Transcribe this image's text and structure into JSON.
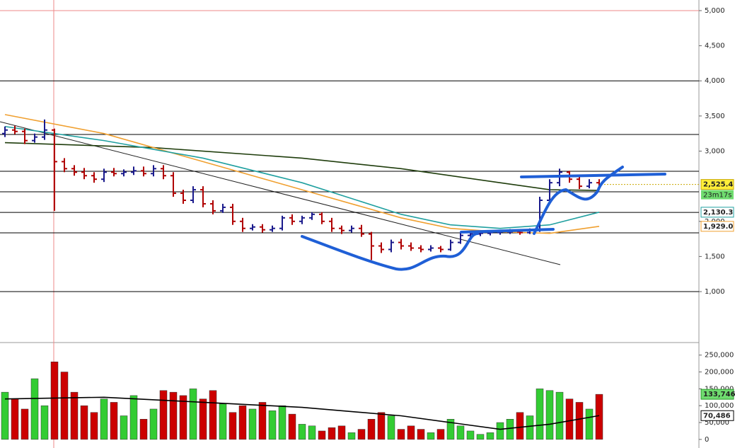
{
  "chart_data": [
    {
      "type": "ohlc",
      "open": [
        3250,
        3300,
        3280,
        3150,
        3200,
        3300,
        2850,
        2750,
        2700,
        2650,
        2600,
        2700,
        2680,
        2700,
        2720,
        2680,
        2750,
        2650,
        2400,
        2300,
        2450,
        2250,
        2150,
        2200,
        2000,
        1900,
        1920,
        1880,
        1900,
        2050,
        2000,
        2050,
        2100,
        2000,
        1900,
        1870,
        1900,
        1820,
        1650,
        1600,
        1700,
        1650,
        1620,
        1600,
        1620,
        1600,
        1700,
        1800,
        1820,
        1830,
        1840,
        1850,
        1850,
        1840,
        1870,
        2300,
        2550,
        2700,
        2600,
        2500,
        2550
      ],
      "high": [
        3350,
        3360,
        3320,
        3250,
        3450,
        3320,
        2900,
        2800,
        2760,
        2700,
        2750,
        2760,
        2740,
        2780,
        2780,
        2800,
        2800,
        2700,
        2450,
        2500,
        2500,
        2300,
        2250,
        2250,
        2050,
        1960,
        1960,
        1940,
        2080,
        2100,
        2080,
        2130,
        2130,
        2050,
        1940,
        1940,
        1950,
        1850,
        1700,
        1740,
        1750,
        1700,
        1660,
        1660,
        1650,
        1740,
        1840,
        1860,
        1860,
        1870,
        1880,
        1890,
        1890,
        1900,
        2350,
        2600,
        2750,
        2720,
        2640,
        2600,
        2600
      ],
      "low": [
        3200,
        3240,
        3100,
        3120,
        3160,
        2150,
        2700,
        2650,
        2600,
        2550,
        2560,
        2640,
        2640,
        2660,
        2640,
        2640,
        2600,
        2350,
        2250,
        2260,
        2200,
        2100,
        2120,
        1950,
        1850,
        1870,
        1840,
        1850,
        1870,
        1950,
        1960,
        2020,
        1960,
        1850,
        1820,
        1840,
        1780,
        1450,
        1550,
        1560,
        1600,
        1580,
        1560,
        1570,
        1560,
        1580,
        1680,
        1780,
        1790,
        1800,
        1810,
        1820,
        1810,
        1820,
        1850,
        2280,
        2500,
        2550,
        2460,
        2470,
        2480
      ],
      "close": [
        3300,
        3280,
        3150,
        3200,
        3300,
        2850,
        2750,
        2700,
        2650,
        2600,
        2700,
        2680,
        2700,
        2720,
        2680,
        2750,
        2650,
        2400,
        2300,
        2450,
        2250,
        2150,
        2200,
        2000,
        1900,
        1920,
        1880,
        1900,
        2050,
        2000,
        2050,
        2100,
        2000,
        1900,
        1870,
        1900,
        1820,
        1650,
        1600,
        1700,
        1650,
        1620,
        1600,
        1620,
        1600,
        1700,
        1800,
        1820,
        1830,
        1840,
        1850,
        1850,
        1840,
        1870,
        2300,
        2550,
        2700,
        2600,
        2500,
        2550,
        2525.4
      ],
      "up_color": "#1a1a8c",
      "down_color": "#b00000",
      "moving_averages": [
        {
          "color": "#1f3d0c",
          "x": [
            0,
            15,
            30,
            40,
            50,
            55,
            60
          ],
          "values": [
            3120,
            3050,
            2900,
            2750,
            2550,
            2450,
            2440
          ]
        },
        {
          "color": "#f0a030",
          "x": [
            0,
            10,
            20,
            30,
            40,
            45,
            50,
            55,
            60
          ],
          "values": [
            3520,
            3250,
            2850,
            2450,
            2050,
            1900,
            1850,
            1830,
            1929.0
          ],
          "last_label": "1,929.0"
        },
        {
          "color": "#20a0a0",
          "x": [
            0,
            10,
            20,
            30,
            40,
            45,
            50,
            55,
            60
          ],
          "values": [
            3350,
            3150,
            2900,
            2550,
            2100,
            1950,
            1900,
            1950,
            2130.3
          ],
          "last_label": "2,130.3"
        }
      ],
      "levels": [
        4000,
        3237,
        2713,
        2421,
        2128,
        1836,
        1000
      ],
      "last_price": {
        "value": 2525.4,
        "label": "2,525.4"
      },
      "countdown": "23m17s",
      "ylim": [
        285,
        5151
      ],
      "yticks": [
        {
          "value": 1000,
          "label": "1,000"
        },
        {
          "value": 1500,
          "label": "1,500"
        },
        {
          "value": 2000,
          "label": "2,000"
        },
        {
          "value": 3000,
          "label": "3,000"
        },
        {
          "value": 3500,
          "label": "3,500"
        },
        {
          "value": 4000,
          "label": "4,000"
        },
        {
          "value": 4500,
          "label": "4,500"
        },
        {
          "value": 5000,
          "label": "5,000"
        }
      ]
    },
    {
      "type": "bar",
      "values": [
        140000,
        120000,
        90000,
        180000,
        100000,
        230000,
        200000,
        140000,
        100000,
        80000,
        120000,
        110000,
        70000,
        130000,
        60000,
        90000,
        145000,
        140000,
        130000,
        150000,
        120000,
        145000,
        105000,
        80000,
        100000,
        90000,
        110000,
        85000,
        100000,
        75000,
        45000,
        40000,
        25000,
        35000,
        40000,
        20000,
        30000,
        60000,
        80000,
        70000,
        30000,
        40000,
        30000,
        20000,
        30000,
        60000,
        40000,
        25000,
        15000,
        20000,
        50000,
        60000,
        80000,
        70000,
        150000,
        145000,
        140000,
        120000,
        110000,
        90000,
        133746
      ],
      "value_labels_last": "133,746",
      "up_color": "#33cc33",
      "down_color": "#cc0000",
      "average": {
        "color": "#000000",
        "x": [
          0,
          10,
          20,
          30,
          40,
          50,
          55,
          60
        ],
        "values": [
          120000,
          125000,
          110000,
          95000,
          70000,
          30000,
          45000,
          70486
        ],
        "last_label": "70,486"
      },
      "ylim": [
        -15000,
        283000
      ],
      "yticks": [
        {
          "value": 0,
          "label": "0"
        },
        {
          "value": 50000,
          "label": "50,000"
        },
        {
          "value": 100000,
          "label": "100,000"
        },
        {
          "value": 150000,
          "label": "150,000"
        },
        {
          "value": 200000,
          "label": "200,000"
        },
        {
          "value": 250000,
          "label": "250,000"
        }
      ]
    }
  ]
}
